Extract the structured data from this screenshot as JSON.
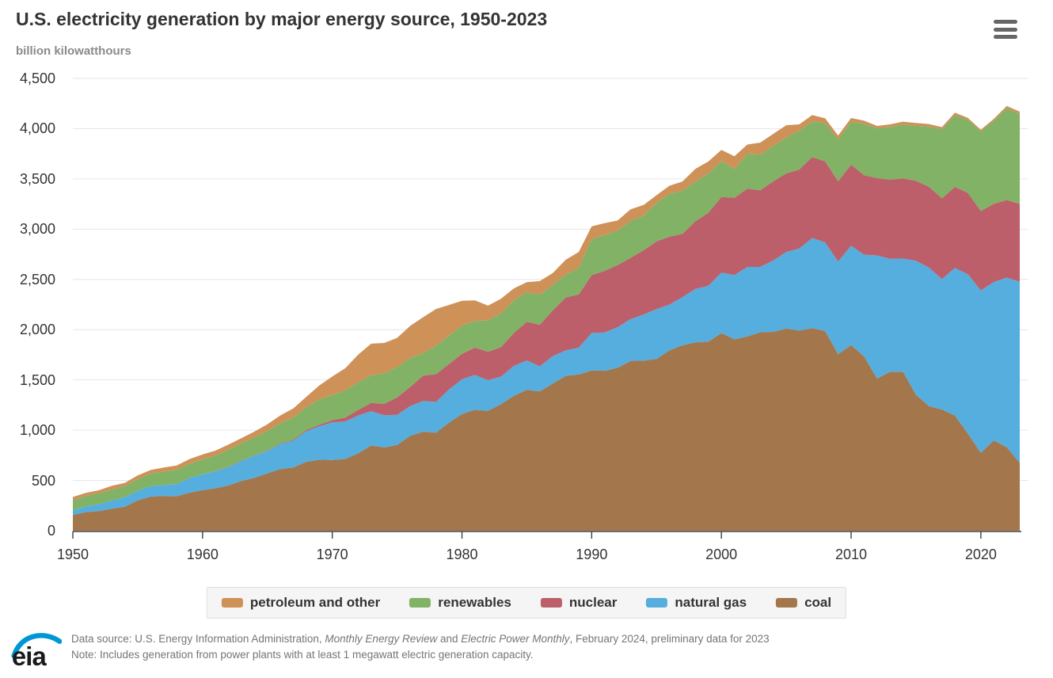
{
  "header": {
    "title": "U.S. electricity generation by major energy source, 1950-2023",
    "subtitle": "billion kilowatthours"
  },
  "icons": {
    "menu": "hamburger-menu-icon",
    "logo": "eia-logo"
  },
  "chart_data": {
    "type": "area",
    "stacked": true,
    "title": "U.S. electricity generation by major energy source, 1950-2023",
    "xlabel": "",
    "ylabel": "billion kilowatthours",
    "xlim": [
      1950,
      2023
    ],
    "ylim": [
      0,
      4500
    ],
    "grid": true,
    "legend_position": "bottom",
    "x": [
      1950,
      1951,
      1952,
      1953,
      1954,
      1955,
      1956,
      1957,
      1958,
      1959,
      1960,
      1961,
      1962,
      1963,
      1964,
      1965,
      1966,
      1967,
      1968,
      1969,
      1970,
      1971,
      1972,
      1973,
      1974,
      1975,
      1976,
      1977,
      1978,
      1979,
      1980,
      1981,
      1982,
      1983,
      1984,
      1985,
      1986,
      1987,
      1988,
      1989,
      1990,
      1991,
      1992,
      1993,
      1994,
      1995,
      1996,
      1997,
      1998,
      1999,
      2000,
      2001,
      2002,
      2003,
      2004,
      2005,
      2006,
      2007,
      2008,
      2009,
      2010,
      2011,
      2012,
      2013,
      2014,
      2015,
      2016,
      2017,
      2018,
      2019,
      2020,
      2021,
      2022,
      2023
    ],
    "series": [
      {
        "name": "coal",
        "color": "#a3764c",
        "values": [
          155,
          185,
          195,
          219,
          239,
          301,
          339,
          346,
          344,
          378,
          403,
          422,
          450,
          494,
          526,
          571,
          613,
          630,
          685,
          706,
          704,
          713,
          771,
          848,
          828,
          853,
          944,
          985,
          976,
          1075,
          1162,
          1203,
          1192,
          1259,
          1342,
          1402,
          1386,
          1464,
          1541,
          1554,
          1594,
          1591,
          1621,
          1690,
          1691,
          1709,
          1795,
          1845,
          1874,
          1881,
          1966,
          1904,
          1933,
          1974,
          1978,
          2013,
          1991,
          2016,
          1986,
          1756,
          1847,
          1733,
          1514,
          1581,
          1582,
          1352,
          1239,
          1206,
          1146,
          966,
          774,
          898,
          831,
          675
        ]
      },
      {
        "name": "natural gas",
        "color": "#55aedd",
        "values": [
          45,
          57,
          68,
          80,
          94,
          95,
          104,
          108,
          120,
          147,
          158,
          169,
          184,
          202,
          220,
          222,
          251,
          265,
          304,
          333,
          373,
          374,
          376,
          341,
          320,
          300,
          295,
          306,
          305,
          329,
          346,
          346,
          305,
          274,
          297,
          292,
          249,
          273,
          253,
          267,
          373,
          381,
          404,
          415,
          460,
          496,
          455,
          479,
          531,
          556,
          601,
          639,
          691,
          650,
          710,
          760,
          816,
          896,
          883,
          921,
          988,
          1013,
          1225,
          1124,
          1126,
          1333,
          1378,
          1296,
          1468,
          1586,
          1617,
          1576,
          1687,
          1802
        ]
      },
      {
        "name": "nuclear",
        "color": "#bc5f6a",
        "values": [
          0,
          0,
          0,
          0,
          0,
          0,
          0,
          0,
          0,
          0,
          1,
          2,
          2,
          3,
          3,
          4,
          6,
          8,
          13,
          14,
          22,
          38,
          54,
          83,
          114,
          173,
          191,
          251,
          276,
          255,
          251,
          273,
          283,
          294,
          328,
          384,
          414,
          455,
          527,
          529,
          577,
          613,
          619,
          610,
          640,
          673,
          675,
          629,
          674,
          728,
          754,
          769,
          780,
          764,
          788,
          782,
          787,
          806,
          806,
          799,
          807,
          790,
          769,
          789,
          797,
          797,
          806,
          805,
          807,
          809,
          790,
          778,
          772,
          775
        ]
      },
      {
        "name": "renewables",
        "color": "#82b266",
        "values": [
          101,
          105,
          109,
          109,
          110,
          116,
          125,
          134,
          144,
          141,
          148,
          155,
          172,
          170,
          180,
          197,
          198,
          225,
          226,
          254,
          251,
          271,
          277,
          275,
          305,
          303,
          287,
          224,
          284,
          283,
          283,
          264,
          312,
          336,
          324,
          295,
          297,
          253,
          226,
          265,
          357,
          356,
          342,
          369,
          345,
          385,
          426,
          430,
          394,
          391,
          356,
          288,
          343,
          355,
          351,
          357,
          385,
          352,
          382,
          417,
          427,
          513,
          496,
          522,
          535,
          546,
          599,
          687,
          713,
          728,
          792,
          826,
          913,
          894
        ]
      },
      {
        "name": "petroleum and other",
        "color": "#ce9158",
        "values": [
          34,
          29,
          30,
          38,
          32,
          37,
          36,
          40,
          40,
          47,
          48,
          49,
          49,
          52,
          57,
          65,
          79,
          89,
          104,
          138,
          184,
          220,
          274,
          314,
          301,
          289,
          320,
          358,
          365,
          304,
          246,
          206,
          147,
          144,
          120,
          100,
          137,
          118,
          149,
          158,
          127,
          119,
          100,
          113,
          105,
          75,
          81,
          92,
          128,
          118,
          111,
          125,
          95,
          119,
          121,
          122,
          64,
          66,
          46,
          39,
          37,
          30,
          23,
          27,
          30,
          28,
          24,
          21,
          25,
          18,
          17,
          19,
          23,
          23
        ]
      }
    ],
    "legend": {
      "items": [
        {
          "label": "petroleum and other",
          "color": "#ce9158"
        },
        {
          "label": "renewables",
          "color": "#82b266"
        },
        {
          "label": "nuclear",
          "color": "#bc5f6a"
        },
        {
          "label": "natural gas",
          "color": "#55aedd"
        },
        {
          "label": "coal",
          "color": "#a3764c"
        }
      ]
    },
    "x_ticks": [
      1950,
      1960,
      1970,
      1980,
      1990,
      2000,
      2010,
      2020
    ],
    "y_ticks": [
      {
        "value": 0,
        "label": "0"
      },
      {
        "value": 500,
        "label": "500"
      },
      {
        "value": 1000,
        "label": "1,000"
      },
      {
        "value": 1500,
        "label": "1,500"
      },
      {
        "value": 2000,
        "label": "2,000"
      },
      {
        "value": 2500,
        "label": "2,500"
      },
      {
        "value": 3000,
        "label": "3,000"
      },
      {
        "value": 3500,
        "label": "3,500"
      },
      {
        "value": 4000,
        "label": "4,000"
      },
      {
        "value": 4500,
        "label": "4,500"
      }
    ],
    "colors": {
      "grid": "#e6e6e6",
      "axis": "#3d3d3d",
      "tick_label": "#333333"
    }
  },
  "footer": {
    "logo_text": "eia",
    "logo_accent_color": "#0096d4",
    "line1_parts": [
      {
        "text": "Data source: U.S. Energy Information Administration, ",
        "italic": false
      },
      {
        "text": "Monthly Energy Review",
        "italic": true
      },
      {
        "text": " and ",
        "italic": false
      },
      {
        "text": "Electric Power Monthly",
        "italic": true
      },
      {
        "text": ", February 2024, preliminary data for 2023",
        "italic": false
      }
    ],
    "line2": "Note: Includes generation from power plants with at least 1 megawatt electric generation capacity."
  }
}
